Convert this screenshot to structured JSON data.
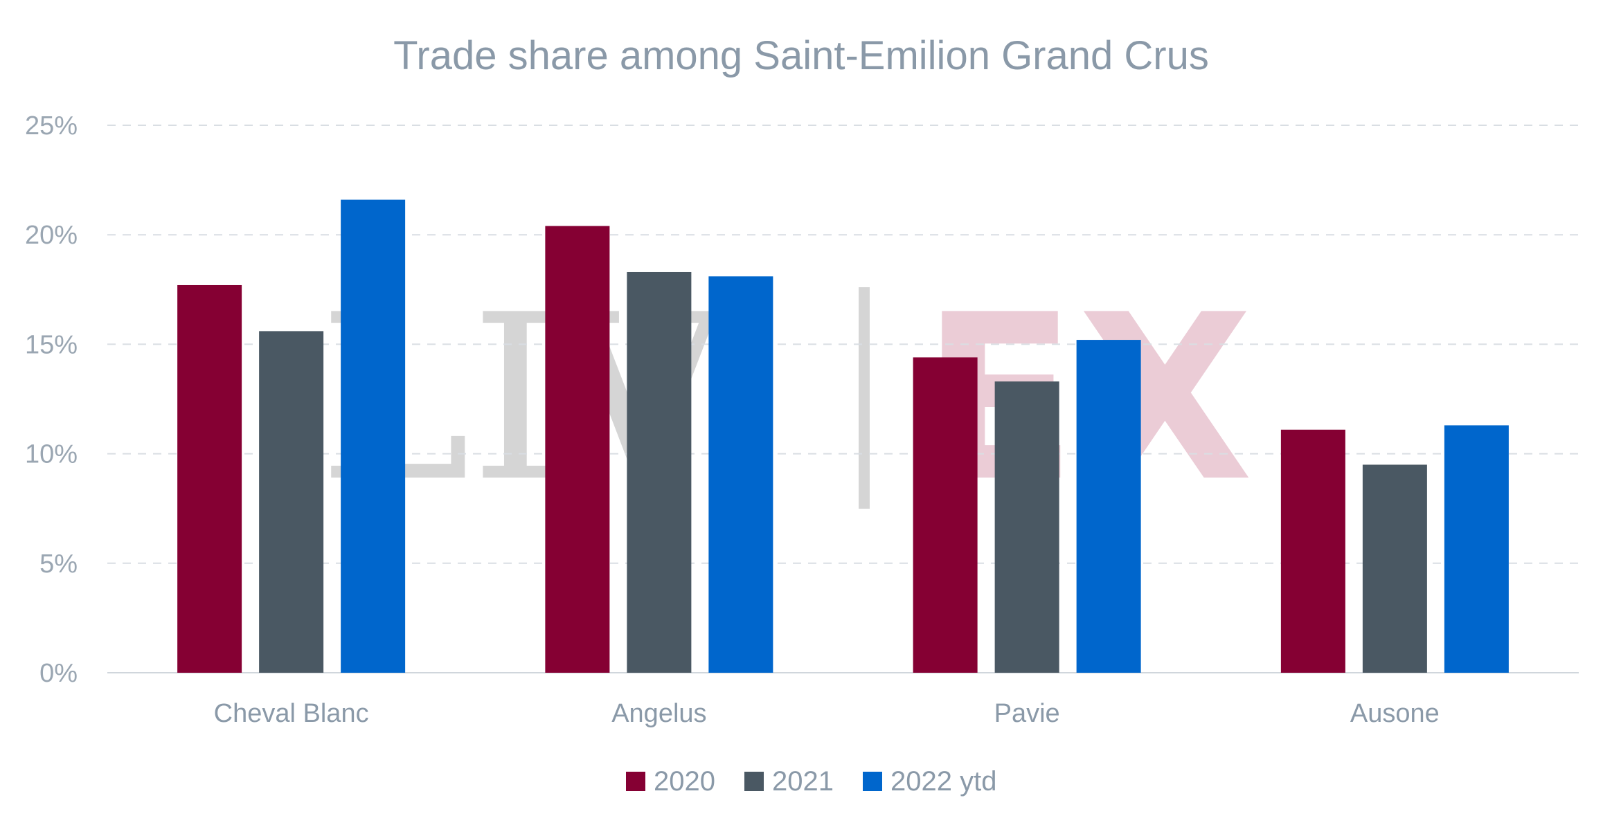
{
  "colors": {
    "2020": "#850033",
    "2021": "#4a5863",
    "2022ytd": "#0066cc"
  },
  "watermark": {
    "left": "LIV",
    "right": "EX"
  },
  "chart_data": {
    "type": "bar",
    "title": "Trade share among Saint-Emilion Grand Crus",
    "categories": [
      "Cheval Blanc",
      "Angelus",
      "Pavie",
      "Ausone"
    ],
    "series": [
      {
        "name": "2020",
        "values": [
          17.7,
          20.4,
          14.4,
          11.1
        ]
      },
      {
        "name": "2021",
        "values": [
          15.6,
          18.3,
          13.3,
          9.5
        ]
      },
      {
        "name": "2022 ytd",
        "values": [
          21.6,
          18.1,
          15.2,
          11.3
        ]
      }
    ],
    "ylim": [
      0,
      25
    ],
    "yticks": [
      0,
      5,
      10,
      15,
      20,
      25
    ],
    "ytick_labels": [
      "0%",
      "5%",
      "10%",
      "15%",
      "20%",
      "25%"
    ],
    "grid": true,
    "legend": "bottom-center"
  }
}
